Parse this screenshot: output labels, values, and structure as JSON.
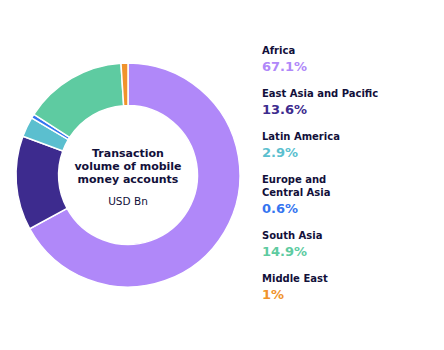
{
  "chart_data": {
    "type": "donut",
    "title": "Transaction\nvolume of mobile\nmoney accounts",
    "subtitle": "USD Bn",
    "categories": [
      "Africa",
      "East Asia and Pacific",
      "Latin America",
      "Europe and\nCentral Asia",
      "South Asia",
      "Middle East"
    ],
    "values": [
      67.1,
      13.6,
      2.9,
      0.6,
      14.9,
      1.0
    ],
    "value_labels": [
      "67.1%",
      "13.6%",
      "2.9%",
      "0.6%",
      "14.9%",
      "1%"
    ],
    "colors": [
      "#b088f9",
      "#3d2b8e",
      "#5bbfcf",
      "#3575f0",
      "#5ecba1",
      "#f0932b"
    ],
    "data_labels": true
  }
}
